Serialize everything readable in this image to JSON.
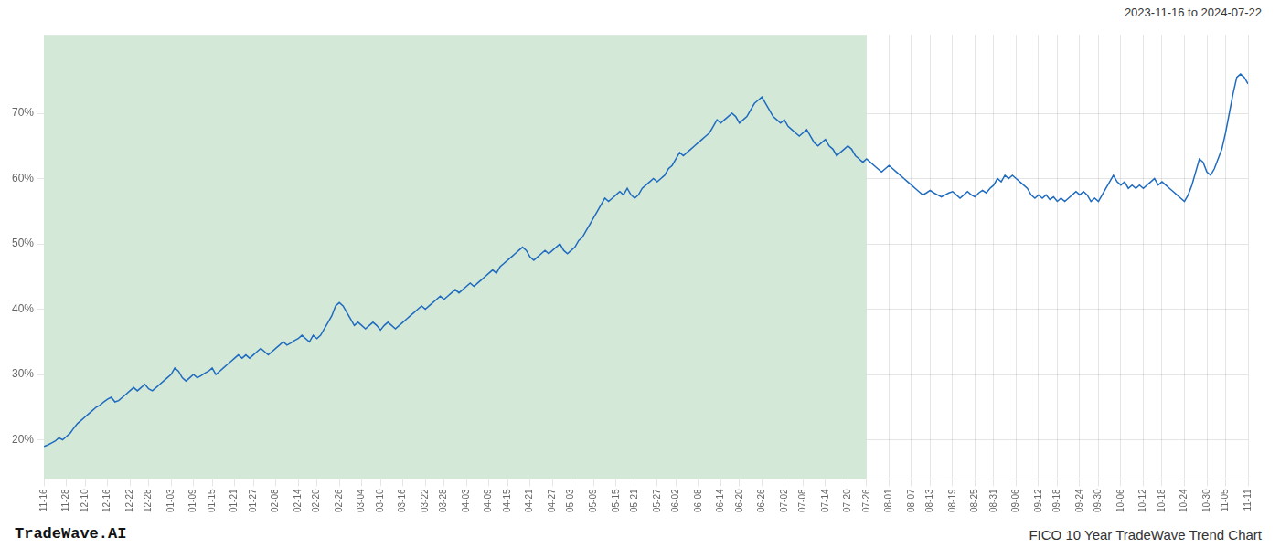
{
  "chart_data": {
    "type": "line",
    "title": "FICO 10 Year TradeWave Trend Chart",
    "subtitle": "2023-11-16 to 2024-07-22",
    "annotations": [
      "TradeWave.AI"
    ],
    "color": "#1f6bbf",
    "grid": true,
    "ylim": [
      14,
      82
    ],
    "yticks": [
      {
        "value": 20,
        "label": "20%"
      },
      {
        "value": 30,
        "label": "30%"
      },
      {
        "value": 40,
        "label": "40%"
      },
      {
        "value": 50,
        "label": "50%"
      },
      {
        "value": 60,
        "label": "60%"
      },
      {
        "value": 70,
        "label": "70%"
      }
    ],
    "shaded_region": {
      "start": "11-16",
      "end": "07-26",
      "color": "#d4e8d8"
    },
    "categories": [
      "11-16",
      null,
      null,
      null,
      null,
      null,
      "11-28",
      null,
      null,
      null,
      null,
      "12-10",
      null,
      null,
      null,
      null,
      null,
      "12-16",
      null,
      null,
      null,
      null,
      null,
      "12-22",
      null,
      null,
      null,
      null,
      "12-28",
      null,
      null,
      null,
      null,
      null,
      "01-03",
      null,
      null,
      null,
      null,
      null,
      "01-09",
      null,
      null,
      null,
      null,
      "01-15",
      null,
      null,
      null,
      null,
      null,
      "01-21",
      null,
      null,
      null,
      null,
      "01-27",
      null,
      null,
      null,
      null,
      null,
      "02-08",
      null,
      null,
      null,
      null,
      null,
      "02-14",
      null,
      null,
      null,
      null,
      "02-20",
      null,
      null,
      null,
      null,
      null,
      "02-26",
      null,
      null,
      null,
      null,
      null,
      "03-04",
      null,
      null,
      null,
      null,
      "03-10",
      null,
      null,
      null,
      null,
      null,
      "03-16",
      null,
      null,
      null,
      null,
      null,
      "03-22",
      null,
      null,
      null,
      null,
      "03-28",
      null,
      null,
      null,
      null,
      null,
      "04-03",
      null,
      null,
      null,
      null,
      null,
      "04-09",
      null,
      null,
      null,
      null,
      "04-15",
      null,
      null,
      null,
      null,
      null,
      "04-21",
      null,
      null,
      null,
      null,
      null,
      "04-27",
      null,
      null,
      null,
      null,
      "05-03",
      null,
      null,
      null,
      null,
      null,
      "05-09",
      null,
      null,
      null,
      null,
      null,
      "05-15",
      null,
      null,
      null,
      null,
      "05-21",
      null,
      null,
      null,
      null,
      null,
      "05-27",
      null,
      null,
      null,
      null,
      "06-02",
      null,
      null,
      null,
      null,
      null,
      "06-08",
      null,
      null,
      null,
      null,
      null,
      "06-14",
      null,
      null,
      null,
      null,
      "06-20",
      null,
      null,
      null,
      null,
      null,
      "06-26",
      null,
      null,
      null,
      null,
      null,
      "07-02",
      null,
      null,
      null,
      null,
      "07-08",
      null,
      null,
      null,
      null,
      null,
      "07-14",
      null,
      null,
      null,
      null,
      null,
      "07-20",
      null,
      null,
      null,
      null,
      "07-26",
      null,
      null,
      null,
      null,
      null,
      "08-01",
      null,
      null,
      null,
      null,
      null,
      "08-07",
      null,
      null,
      null,
      null,
      "08-13",
      null,
      null,
      null,
      null,
      null,
      "08-19",
      null,
      null,
      null,
      null,
      null,
      "08-25",
      null,
      null,
      null,
      null,
      "08-31",
      null,
      null,
      null,
      null,
      null,
      "09-06",
      null,
      null,
      null,
      null,
      null,
      "09-12",
      null,
      null,
      null,
      null,
      "09-18",
      null,
      null,
      null,
      null,
      null,
      "09-24",
      null,
      null,
      null,
      null,
      "09-30",
      null,
      null,
      null,
      null,
      null,
      "10-06",
      null,
      null,
      null,
      null,
      null,
      "10-12",
      null,
      null,
      null,
      null,
      "10-18",
      null,
      null,
      null,
      null,
      null,
      "10-24",
      null,
      null,
      null,
      null,
      null,
      "10-30",
      null,
      null,
      null,
      null,
      "11-05",
      null,
      null,
      null,
      null,
      null,
      "11-11"
    ],
    "values": [
      19.0,
      19.2,
      19.5,
      19.8,
      20.3,
      20.0,
      20.5,
      21.0,
      21.8,
      22.5,
      23.0,
      23.5,
      24.0,
      24.5,
      25.0,
      25.3,
      25.8,
      26.2,
      26.5,
      25.8,
      26.0,
      26.5,
      27.0,
      27.5,
      28.0,
      27.5,
      28.0,
      28.5,
      27.8,
      27.5,
      28.0,
      28.5,
      29.0,
      29.5,
      30.0,
      31.0,
      30.5,
      29.5,
      29.0,
      29.5,
      30.0,
      29.5,
      29.8,
      30.2,
      30.5,
      31.0,
      30.0,
      30.5,
      31.0,
      31.5,
      32.0,
      32.5,
      33.0,
      32.5,
      33.0,
      32.5,
      33.0,
      33.5,
      34.0,
      33.5,
      33.0,
      33.5,
      34.0,
      34.5,
      35.0,
      34.5,
      34.8,
      35.2,
      35.5,
      36.0,
      35.5,
      35.0,
      36.0,
      35.5,
      36.0,
      37.0,
      38.0,
      39.0,
      40.5,
      41.0,
      40.5,
      39.5,
      38.5,
      37.5,
      38.0,
      37.5,
      37.0,
      37.5,
      38.0,
      37.5,
      36.8,
      37.5,
      38.0,
      37.5,
      37.0,
      37.5,
      38.0,
      38.5,
      39.0,
      39.5,
      40.0,
      40.5,
      40.0,
      40.5,
      41.0,
      41.5,
      42.0,
      41.5,
      42.0,
      42.5,
      43.0,
      42.5,
      43.0,
      43.5,
      44.0,
      43.5,
      44.0,
      44.5,
      45.0,
      45.5,
      46.0,
      45.5,
      46.5,
      47.0,
      47.5,
      48.0,
      48.5,
      49.0,
      49.5,
      49.0,
      48.0,
      47.5,
      48.0,
      48.5,
      49.0,
      48.5,
      49.0,
      49.5,
      50.0,
      49.0,
      48.5,
      49.0,
      49.5,
      50.5,
      51.0,
      52.0,
      53.0,
      54.0,
      55.0,
      56.0,
      57.0,
      56.5,
      57.0,
      57.5,
      58.0,
      57.5,
      58.5,
      57.5,
      57.0,
      57.5,
      58.5,
      59.0,
      59.5,
      60.0,
      59.5,
      60.0,
      60.5,
      61.5,
      62.0,
      63.0,
      64.0,
      63.5,
      64.0,
      64.5,
      65.0,
      65.5,
      66.0,
      66.5,
      67.0,
      68.0,
      69.0,
      68.5,
      69.0,
      69.5,
      70.0,
      69.5,
      68.5,
      69.0,
      69.5,
      70.5,
      71.5,
      72.0,
      72.5,
      71.5,
      70.5,
      69.5,
      69.0,
      68.5,
      69.0,
      68.0,
      67.5,
      67.0,
      66.5,
      67.0,
      67.5,
      66.5,
      65.5,
      65.0,
      65.5,
      66.0,
      65.0,
      64.5,
      63.5,
      64.0,
      64.5,
      65.0,
      64.5,
      63.5,
      63.0,
      62.5,
      63.0,
      62.5,
      62.0,
      61.5,
      61.0,
      61.5,
      62.0,
      61.5,
      61.0,
      60.5,
      60.0,
      59.5,
      59.0,
      58.5,
      58.0,
      57.5,
      57.8,
      58.2,
      57.8,
      57.5,
      57.2,
      57.5,
      57.8,
      58.0,
      57.5,
      57.0,
      57.5,
      58.0,
      57.5,
      57.2,
      57.8,
      58.2,
      57.8,
      58.5,
      59.0,
      60.0,
      59.5,
      60.5,
      60.0,
      60.5,
      60.0,
      59.5,
      59.0,
      58.5,
      57.5,
      57.0,
      57.5,
      57.0,
      57.5,
      56.8,
      57.2,
      56.5,
      57.0,
      56.5,
      57.0,
      57.5,
      58.0,
      57.5,
      58.0,
      57.5,
      56.5,
      57.0,
      56.5,
      57.5,
      58.5,
      59.5,
      60.5,
      59.5,
      59.0,
      59.5,
      58.5,
      59.0,
      58.5,
      59.0,
      58.5,
      59.0,
      59.5,
      60.0,
      59.0,
      59.5,
      59.0,
      58.5,
      58.0,
      57.5,
      57.0,
      56.5,
      57.5,
      59.0,
      61.0,
      63.0,
      62.5,
      61.0,
      60.5,
      61.5,
      63.0,
      64.5,
      67.0,
      70.0,
      73.0,
      75.5,
      76.0,
      75.5,
      74.5
    ]
  }
}
